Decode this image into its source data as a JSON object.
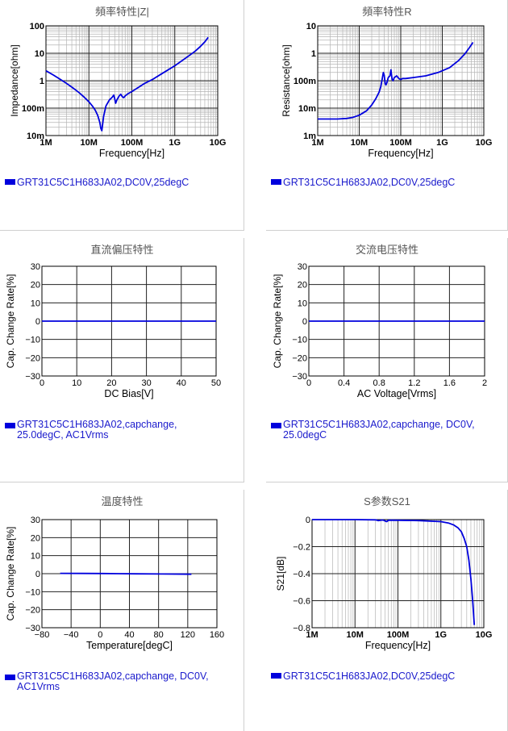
{
  "colors": {
    "series": "#0000dd",
    "legend_text": "#1a1acc",
    "grid": "#b5b5b5",
    "grid_major": "#222222"
  },
  "chart_data": [
    {
      "id": "impedance",
      "type": "line",
      "title": "頻率特性|Z|",
      "xlabel": "Frequency[Hz]",
      "ylabel": "Impedance[ohm]",
      "xscale": "log",
      "yscale": "log",
      "xlim": [
        1000000,
        10000000000
      ],
      "ylim": [
        0.01,
        100
      ],
      "xticklabels": [
        "1M",
        "10M",
        "100M",
        "1G",
        "10G"
      ],
      "yticklabels": [
        "10m",
        "100m",
        "1",
        "10",
        "100"
      ],
      "grid": true,
      "series": [
        {
          "name": "GRT31C5C1H683JA02,DC0V,25degC",
          "x": [
            1000000,
            1500000,
            2000000,
            3000000,
            4000000,
            5000000,
            6000000,
            7000000,
            8000000,
            9000000,
            10000000,
            12000000,
            14000000,
            16000000,
            18000000,
            19000000,
            20000000,
            22000000,
            25000000,
            30000000,
            35000000,
            38000000,
            40000000,
            42000000,
            45000000,
            50000000,
            55000000,
            60000000,
            65000000,
            70000000,
            80000000,
            100000000,
            150000000,
            200000000,
            300000000,
            500000000,
            1000000000,
            2000000000,
            3000000000,
            4000000000,
            5000000000,
            6000000000
          ],
          "y": [
            2.3,
            1.6,
            1.2,
            0.8,
            0.58,
            0.45,
            0.36,
            0.29,
            0.24,
            0.2,
            0.17,
            0.12,
            0.085,
            0.055,
            0.03,
            0.018,
            0.015,
            0.05,
            0.12,
            0.2,
            0.25,
            0.3,
            0.22,
            0.15,
            0.2,
            0.27,
            0.32,
            0.26,
            0.24,
            0.28,
            0.33,
            0.4,
            0.6,
            0.8,
            1.1,
            1.8,
            3.5,
            7.5,
            12,
            18,
            26,
            38
          ]
        }
      ]
    },
    {
      "id": "resistance",
      "type": "line",
      "title": "頻率特性R",
      "xlabel": "Frequency[Hz]",
      "ylabel": "Resistance[ohm]",
      "xscale": "log",
      "yscale": "log",
      "xlim": [
        1000000,
        10000000000
      ],
      "ylim": [
        0.001,
        10
      ],
      "xticklabels": [
        "1M",
        "10M",
        "100M",
        "1G",
        "10G"
      ],
      "yticklabels": [
        "1m",
        "10m",
        "100m",
        "1",
        "10"
      ],
      "grid": true,
      "series": [
        {
          "name": "GRT31C5C1H683JA02,DC0V,25degC",
          "x": [
            1000000,
            3000000,
            5000000,
            7000000,
            10000000,
            15000000,
            20000000,
            25000000,
            30000000,
            33000000,
            36000000,
            38000000,
            40000000,
            42000000,
            44000000,
            47000000,
            50000000,
            55000000,
            58000000,
            60000000,
            62000000,
            65000000,
            70000000,
            80000000,
            90000000,
            100000000,
            110000000,
            130000000,
            200000000,
            400000000,
            800000000,
            1500000000,
            2500000000,
            3500000000,
            4500000000,
            5500000000
          ],
          "y": [
            0.004,
            0.004,
            0.0042,
            0.0046,
            0.0055,
            0.008,
            0.013,
            0.022,
            0.038,
            0.06,
            0.12,
            0.2,
            0.16,
            0.08,
            0.07,
            0.09,
            0.13,
            0.15,
            0.25,
            0.16,
            0.11,
            0.1,
            0.13,
            0.15,
            0.12,
            0.11,
            0.12,
            0.12,
            0.13,
            0.15,
            0.2,
            0.3,
            0.55,
            0.95,
            1.6,
            2.5
          ]
        }
      ]
    },
    {
      "id": "dc_bias",
      "type": "line",
      "title": "直流偏压特性",
      "xlabel": "DC Bias[V]",
      "ylabel": "Cap. Change Rate[%]",
      "xlim": [
        0,
        50
      ],
      "ylim": [
        -30,
        30
      ],
      "xticklabels": [
        "0",
        "10",
        "20",
        "30",
        "40",
        "50"
      ],
      "yticklabels": [
        "−30",
        "−20",
        "−10",
        "0",
        "10",
        "20",
        "30"
      ],
      "grid": true,
      "series": [
        {
          "name": "GRT31C5C1H683JA02,capchange,\n25.0degC, AC1Vrms",
          "x": [
            0,
            50
          ],
          "y": [
            0,
            0
          ]
        }
      ]
    },
    {
      "id": "ac_voltage",
      "type": "line",
      "title": "交流电压特性",
      "xlabel": "AC Voltage[Vrms]",
      "ylabel": "Cap. Change Rate[%]",
      "xlim": [
        0,
        2
      ],
      "ylim": [
        -30,
        30
      ],
      "xticklabels": [
        "0",
        "0.4",
        "0.8",
        "1.2",
        "1.6",
        "2"
      ],
      "yticklabels": [
        "−30",
        "−20",
        "−10",
        "0",
        "10",
        "20",
        "30"
      ],
      "grid": true,
      "series": [
        {
          "name": "GRT31C5C1H683JA02,capchange, DC0V,\n25.0degC",
          "x": [
            0,
            2
          ],
          "y": [
            0,
            0
          ]
        }
      ]
    },
    {
      "id": "temperature",
      "type": "line",
      "title": "温度特性",
      "xlabel": "Temperature[degC]",
      "ylabel": "Cap. Change Rate[%]",
      "xlim": [
        -80,
        160
      ],
      "ylim": [
        -30,
        30
      ],
      "xticklabels": [
        "−80",
        "−40",
        "0",
        "40",
        "80",
        "120",
        "160"
      ],
      "yticklabels": [
        "−30",
        "−20",
        "−10",
        "0",
        "10",
        "20",
        "30"
      ],
      "grid": true,
      "series": [
        {
          "name": "GRT31C5C1H683JA02,capchange, DC0V,\nAC1Vrms",
          "x": [
            -55,
            -25,
            0,
            25,
            50,
            85,
            125
          ],
          "y": [
            0.2,
            0.15,
            0.1,
            0,
            -0.1,
            -0.2,
            -0.3
          ]
        }
      ]
    },
    {
      "id": "s21",
      "type": "line",
      "title": "S参数S21",
      "xlabel": "Frequency[Hz]",
      "ylabel": "S21[dB]",
      "xscale": "log",
      "xlim": [
        1000000,
        10000000000
      ],
      "ylim": [
        -0.8,
        0
      ],
      "xticklabels": [
        "1M",
        "10M",
        "100M",
        "1G",
        "10G"
      ],
      "yticklabels": [
        "−0.8",
        "−0.6",
        "−0.4",
        "−0.2",
        "0"
      ],
      "grid": true,
      "series": [
        {
          "name": "GRT31C5C1H683JA02,DC0V,25degC",
          "x": [
            1000000,
            10000000,
            30000000,
            35000000,
            40000000,
            45000000,
            50000000,
            55000000,
            60000000,
            70000000,
            100000000,
            300000000,
            1000000000,
            1500000000,
            2000000000,
            2500000000,
            3000000000,
            3500000000,
            4000000000,
            4500000000,
            5000000000,
            5500000000,
            6000000000
          ],
          "y": [
            0,
            0,
            -0.002,
            -0.008,
            -0.004,
            -0.003,
            -0.01,
            -0.015,
            -0.005,
            -0.004,
            -0.005,
            -0.007,
            -0.015,
            -0.025,
            -0.04,
            -0.06,
            -0.09,
            -0.14,
            -0.2,
            -0.3,
            -0.44,
            -0.6,
            -0.78
          ]
        }
      ]
    }
  ]
}
